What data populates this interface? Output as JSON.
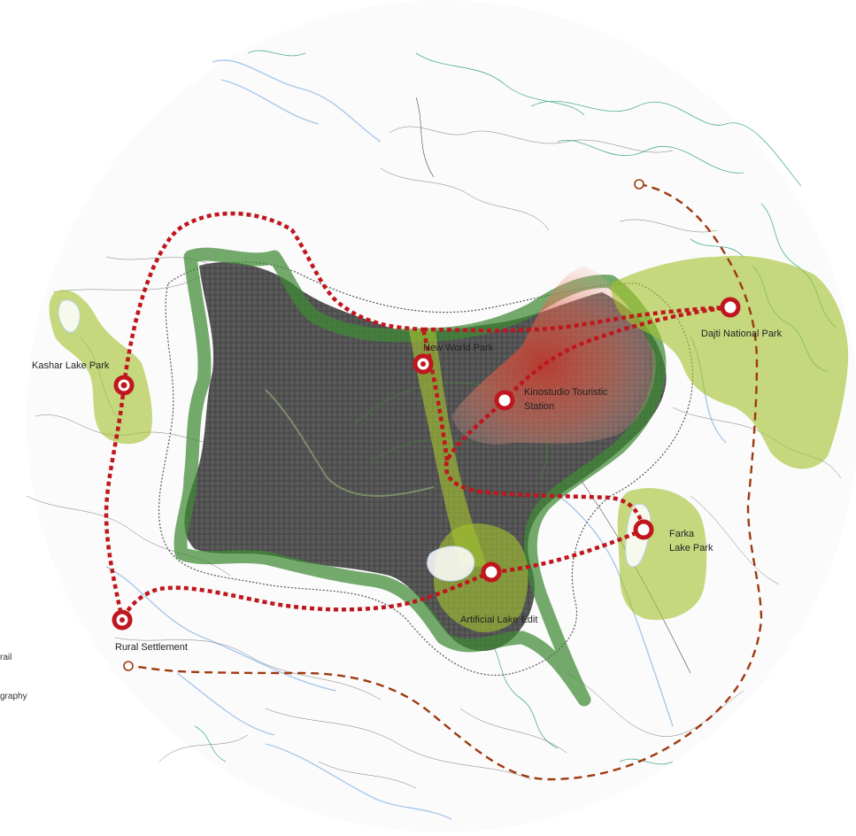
{
  "map": {
    "labels": {
      "kashar": "Kashar Lake Park",
      "new_world": "New World Park",
      "kinostudio_line1": "Kinostudio Touristic",
      "kinostudio_line2": "Station",
      "dajti": "Dajti National Park",
      "farka_line1": "Farka",
      "farka_line2": "Lake Park",
      "artificial": "Artificial Lake Edit",
      "rural": "Rural Settlement"
    },
    "legend": {
      "trail_fragment": "rail",
      "topography_fragment": "graphy"
    },
    "colors": {
      "urban_fabric": "#4a4a4a",
      "green_belt": "#3f8a35",
      "park_area": "#a3c22f",
      "tourist_route": "#c0161e",
      "rural_trail": "#9e3a10",
      "river": "#a9c8ea",
      "topography": "#4fb08d",
      "touristic_zone": "#e06a55"
    },
    "icons": {
      "station_node": "ring-marker-icon",
      "rural_node": "small-ring-icon"
    }
  }
}
